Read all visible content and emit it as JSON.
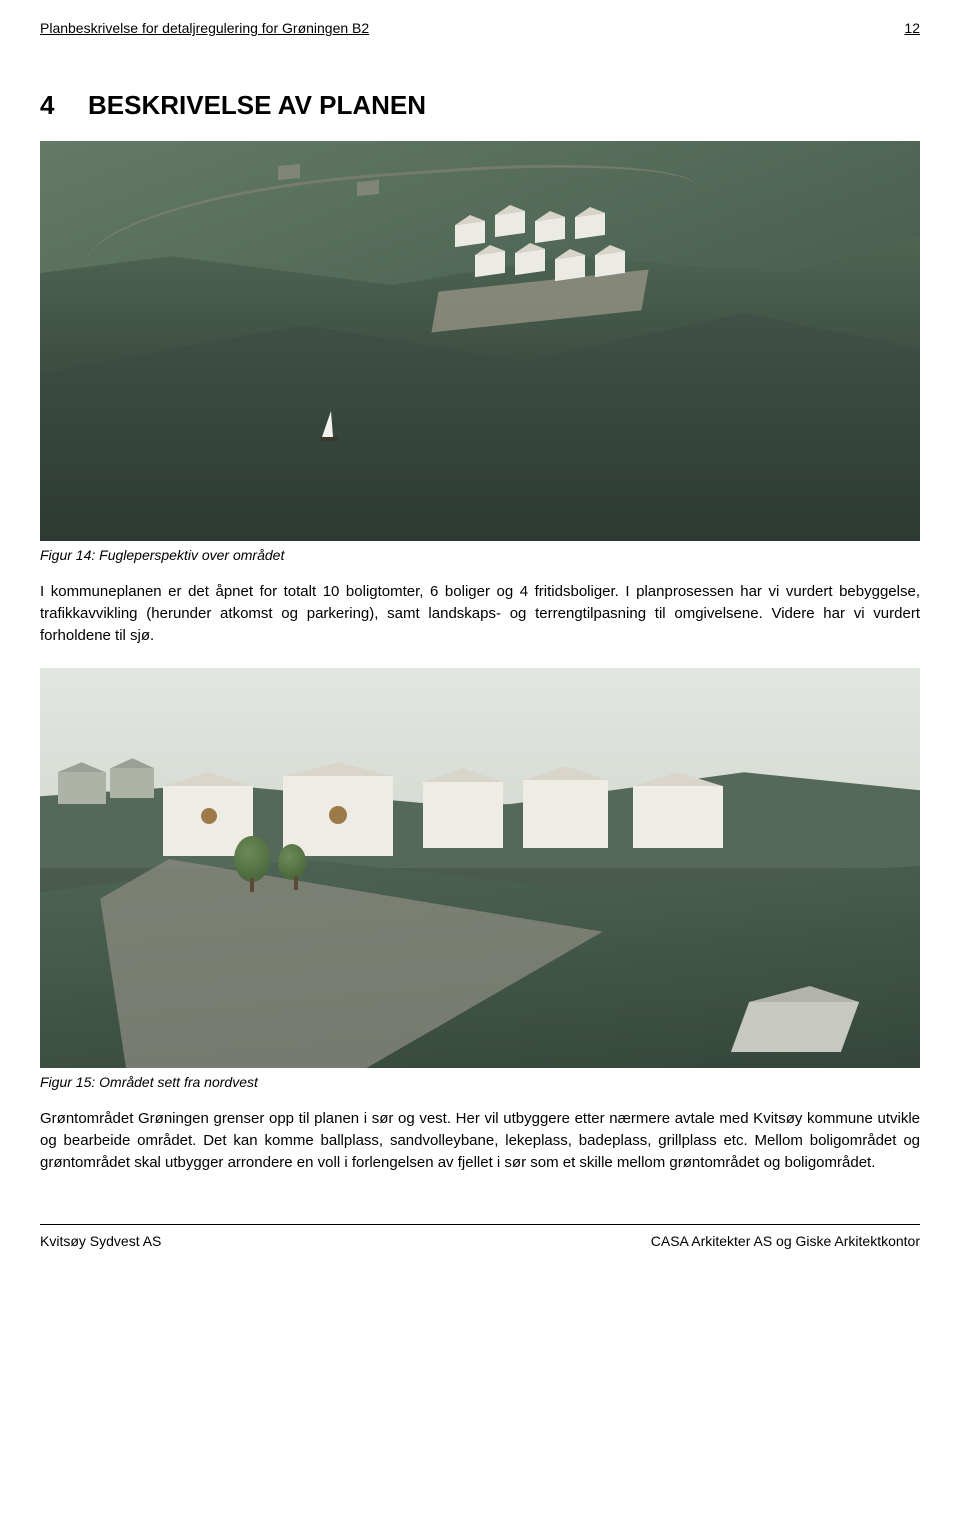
{
  "header": {
    "title": "Planbeskrivelse for detaljregulering for Grøningen B2",
    "page_number": "12"
  },
  "section": {
    "number": "4",
    "title": "BESKRIVELSE AV PLANEN"
  },
  "figure14": {
    "caption": "Figur 14: Fugleperspektiv over området",
    "colors": {
      "land": "#5a705e",
      "water": "#2e3c34",
      "houses": "#eceae4",
      "roof": "#d8d4ca",
      "road": "#8a8477",
      "sail": "#f4f2ec"
    }
  },
  "para1": "I kommuneplanen er det åpnet for totalt 10 boligtomter, 6 boliger og 4 fritidsboliger. I planprosessen har vi vurdert bebyggelse, trafikkavvikling (herunder atkomst og parkering), samt landskaps- og terrengtilpasning til omgivelsene. Videre har vi vurdert forholdene til sjø.",
  "figure15": {
    "caption": "Figur 15: Området sett fra nordvest",
    "colors": {
      "sky": "#e1e6e0",
      "ground": "#4e5f52",
      "houses": "#efece5",
      "accent": "#9c7a4a",
      "path": "#8b8a80",
      "tree": "#4c6a3e"
    }
  },
  "para2": "Grøntområdet Grøningen grenser opp til planen i sør og vest. Her vil utbyggere etter nærmere avtale med Kvitsøy kommune utvikle og bearbeide området. Det kan komme ballplass, sandvolleybane, lekeplass, badeplass, grillplass etc. Mellom boligområdet og grøntområdet skal utbygger arrondere en voll i forlengelsen av fjellet i sør som et skille mellom grøntområdet og boligområdet.",
  "footer": {
    "left": "Kvitsøy Sydvest AS",
    "right": "CASA Arkitekter AS og Giske Arkitektkontor"
  }
}
